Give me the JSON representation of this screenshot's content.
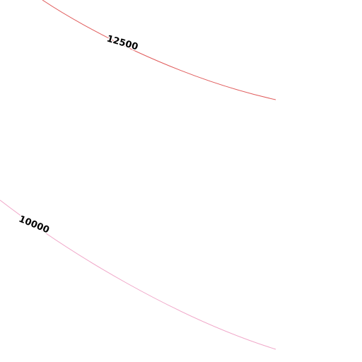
{
  "contours": [
    {
      "level": 12500,
      "color": "#e05a5a"
    },
    {
      "level": 10000,
      "color": "#f0a6c8"
    }
  ]
}
